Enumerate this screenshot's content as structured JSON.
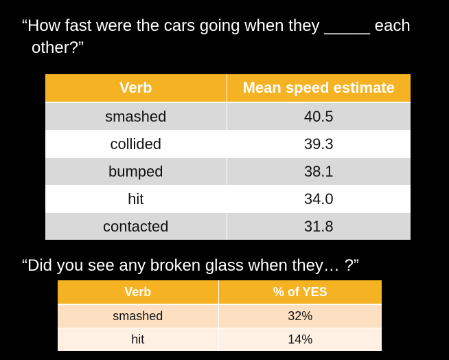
{
  "question1": "“How fast were the cars going when they _____ each other?”",
  "table1": {
    "headers": [
      "Verb",
      "Mean speed estimate"
    ],
    "rows": [
      {
        "verb": "smashed",
        "value": "40.5"
      },
      {
        "verb": "collided",
        "value": "39.3"
      },
      {
        "verb": "bumped",
        "value": "38.1"
      },
      {
        "verb": "hit",
        "value": "34.0"
      },
      {
        "verb": "contacted",
        "value": "31.8"
      }
    ]
  },
  "question2": "“Did you see any broken glass when they… ?”",
  "table2": {
    "headers": [
      "Verb",
      "% of YES"
    ],
    "rows": [
      {
        "verb": "smashed",
        "value": "32%"
      },
      {
        "verb": "hit",
        "value": "14%"
      }
    ]
  },
  "colors": {
    "header": "#f5b223",
    "row_gray": "#d9d9d9",
    "row_white": "#ffffff",
    "row_peach_dark": "#fde0c2",
    "row_peach_light": "#fef0e2",
    "background": "#000000"
  }
}
